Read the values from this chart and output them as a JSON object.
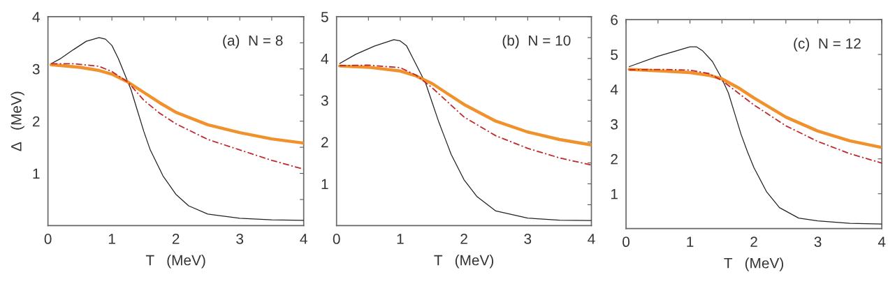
{
  "chart_data": [
    {
      "type": "line",
      "xlabel": "T   (MeV)",
      "ylabel": "Δ   (MeV)",
      "annotations": [
        "(a)  N = 8"
      ],
      "xlim": [
        0,
        4
      ],
      "ylim": [
        0,
        4
      ],
      "xticks": [
        0,
        {
          "value": 0.5,
          "label": null
        },
        1,
        {
          "value": 1.5,
          "label": null
        },
        2,
        {
          "value": 2.5,
          "label": null
        },
        3,
        {
          "value": 3.5,
          "label": null
        },
        4
      ],
      "yticks": [
        {
          "value": 0.5,
          "label": null
        },
        1,
        {
          "value": 1.5,
          "label": null
        },
        2,
        {
          "value": 2.5,
          "label": null
        },
        3,
        {
          "value": 3.5,
          "label": null
        },
        4
      ],
      "grid": false,
      "series": [
        {
          "color": "#222222",
          "line_style": "solid",
          "x": [
            0.05,
            0.2,
            0.4,
            0.6,
            0.8,
            0.9,
            1.0,
            1.1,
            1.2,
            1.3,
            1.4,
            1.5,
            1.6,
            1.8,
            2.0,
            2.2,
            2.5,
            3.0,
            3.5,
            4.0
          ],
          "values": [
            3.1,
            3.2,
            3.37,
            3.53,
            3.6,
            3.57,
            3.45,
            3.2,
            2.9,
            2.6,
            2.2,
            1.8,
            1.45,
            0.95,
            0.6,
            0.38,
            0.22,
            0.14,
            0.11,
            0.1
          ]
        },
        {
          "color": "#c0282a",
          "line_style": "dashdot",
          "x": [
            0.05,
            0.4,
            0.8,
            1.0,
            1.25,
            1.5,
            1.75,
            2.0,
            2.5,
            3.0,
            3.5,
            4.0
          ],
          "values": [
            3.1,
            3.1,
            3.05,
            2.95,
            2.75,
            2.4,
            2.15,
            1.95,
            1.65,
            1.45,
            1.25,
            1.08
          ]
        },
        {
          "color": "#f0912c",
          "line_style": "solid",
          "x": [
            0.05,
            0.5,
            0.8,
            1.0,
            1.25,
            1.5,
            1.75,
            2.0,
            2.5,
            3.0,
            3.5,
            4.0
          ],
          "values": [
            3.08,
            3.03,
            2.97,
            2.9,
            2.75,
            2.55,
            2.35,
            2.17,
            1.93,
            1.78,
            1.66,
            1.58
          ]
        }
      ]
    },
    {
      "type": "line",
      "xlabel": "T   (MeV)",
      "annotations": [
        "(b)  N = 10"
      ],
      "xlim": [
        0,
        4
      ],
      "ylim": [
        0,
        5
      ],
      "xticks": [
        0,
        {
          "value": 0.5,
          "label": null
        },
        1,
        {
          "value": 1.5,
          "label": null
        },
        2,
        {
          "value": 2.5,
          "label": null
        },
        3,
        {
          "value": 3.5,
          "label": null
        },
        4
      ],
      "yticks": [
        {
          "value": 0.5,
          "label": null
        },
        1,
        {
          "value": 1.5,
          "label": null
        },
        2,
        {
          "value": 2.5,
          "label": null
        },
        3,
        {
          "value": 3.5,
          "label": null
        },
        4,
        {
          "value": 4.5,
          "label": null
        },
        5
      ],
      "grid": false,
      "series": [
        {
          "color": "#222222",
          "line_style": "solid",
          "x": [
            0.05,
            0.3,
            0.6,
            0.9,
            1.0,
            1.1,
            1.2,
            1.3,
            1.4,
            1.5,
            1.6,
            1.7,
            1.8,
            2.0,
            2.2,
            2.5,
            3.0,
            3.5,
            4.0
          ],
          "values": [
            3.88,
            4.1,
            4.3,
            4.45,
            4.42,
            4.3,
            4.0,
            3.7,
            3.4,
            2.95,
            2.5,
            2.1,
            1.7,
            1.1,
            0.7,
            0.35,
            0.18,
            0.13,
            0.12
          ]
        },
        {
          "color": "#c0282a",
          "line_style": "dashdot",
          "x": [
            0.05,
            0.5,
            1.0,
            1.25,
            1.5,
            2.0,
            2.5,
            3.0,
            3.5,
            4.0
          ],
          "values": [
            3.83,
            3.84,
            3.78,
            3.6,
            3.3,
            2.6,
            2.15,
            1.85,
            1.62,
            1.45
          ]
        },
        {
          "color": "#f0912c",
          "line_style": "solid",
          "x": [
            0.05,
            0.5,
            1.0,
            1.25,
            1.5,
            1.75,
            2.0,
            2.5,
            3.0,
            3.5,
            4.0
          ],
          "values": [
            3.82,
            3.79,
            3.7,
            3.58,
            3.4,
            3.15,
            2.9,
            2.5,
            2.24,
            2.06,
            1.93
          ]
        }
      ]
    },
    {
      "type": "line",
      "xlabel": "T   (MeV)",
      "annotations": [
        "(c)  N = 12"
      ],
      "xlim": [
        0,
        4
      ],
      "ylim": [
        0,
        6
      ],
      "xticks": [
        0,
        {
          "value": 0.5,
          "label": null
        },
        1,
        {
          "value": 1.5,
          "label": null
        },
        2,
        {
          "value": 2.5,
          "label": null
        },
        3,
        {
          "value": 3.5,
          "label": null
        },
        4
      ],
      "yticks": [
        1,
        2,
        3,
        4,
        5,
        6
      ],
      "grid": false,
      "series": [
        {
          "color": "#222222",
          "line_style": "solid",
          "x": [
            0.05,
            0.5,
            1.0,
            1.1,
            1.2,
            1.35,
            1.5,
            1.6,
            1.7,
            1.8,
            1.9,
            2.0,
            2.2,
            2.4,
            2.7,
            3.0,
            3.5,
            4.0
          ],
          "values": [
            4.65,
            4.95,
            5.22,
            5.22,
            5.1,
            4.8,
            4.3,
            3.9,
            3.3,
            2.7,
            2.2,
            1.75,
            1.05,
            0.6,
            0.3,
            0.22,
            0.15,
            0.13
          ]
        },
        {
          "color": "#c0282a",
          "line_style": "dashdot",
          "x": [
            0.05,
            0.6,
            1.0,
            1.3,
            1.5,
            2.0,
            2.5,
            3.0,
            3.5,
            4.0
          ],
          "values": [
            4.56,
            4.57,
            4.55,
            4.45,
            4.25,
            3.55,
            2.95,
            2.5,
            2.15,
            1.88
          ]
        },
        {
          "color": "#f0912c",
          "line_style": "solid",
          "x": [
            0.05,
            0.5,
            1.0,
            1.3,
            1.5,
            1.75,
            2.0,
            2.5,
            3.0,
            3.5,
            4.0
          ],
          "values": [
            4.57,
            4.53,
            4.48,
            4.4,
            4.3,
            4.05,
            3.75,
            3.2,
            2.8,
            2.52,
            2.33
          ]
        }
      ]
    }
  ]
}
